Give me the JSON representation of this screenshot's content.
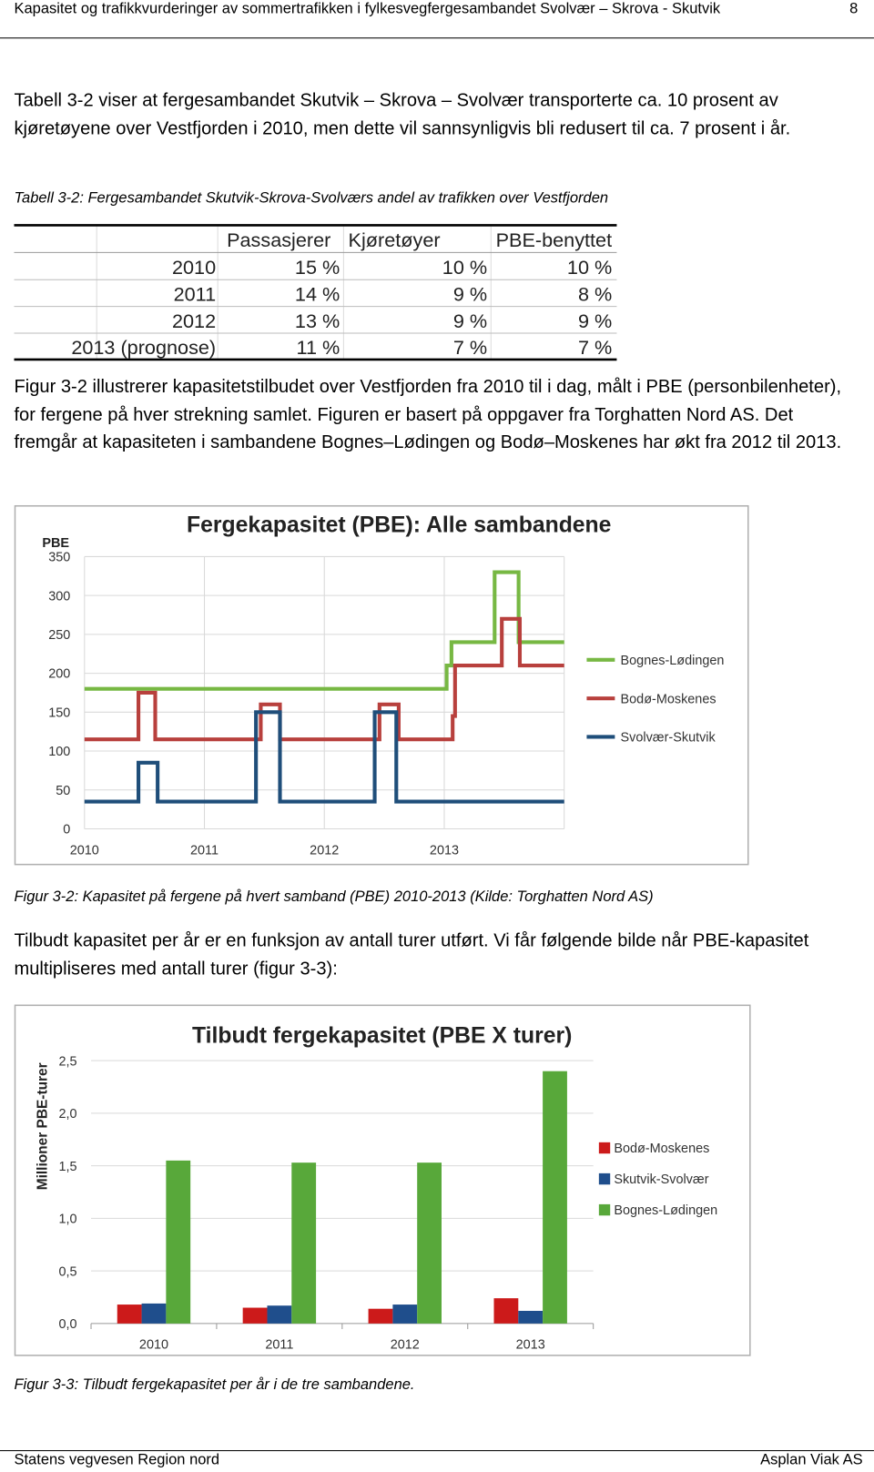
{
  "header": {
    "title": "Kapasitet og trafikkvurderinger av sommertrafikken i fylkesvegfergesambandet Svolvær – Skrova - Skutvik",
    "page_number": "8"
  },
  "paragraphs": [
    "Tabell 3-2 viser at fergesambandet Skutvik – Skrova – Svolvær transporterte ca. 10 prosent av kjøretøyene over Vestfjorden i 2010, men dette vil sannsynligvis bli redusert til ca. 7 prosent i år.",
    "Figur 3-2 illustrerer kapasitetstilbudet over Vestfjorden fra 2010 til i dag, målt i PBE (personbilenheter), for fergene på hver strekning samlet. Figuren er basert på oppgaver fra Torghatten Nord AS. Det fremgår at kapasiteten i sambandene Bognes–Lødingen og Bodø–Moskenes har økt fra 2012 til 2013.",
    "Tilbudt kapasitet per år er en funksjon av antall turer utført. Vi får følgende bilde når PBE-kapasitet multipliseres med antall turer (figur 3-3):"
  ],
  "table": {
    "caption": "Tabell 3-2: Fergesambandet Skutvik-Skrova-Svolværs andel av trafikken over Vestfjorden",
    "columns": [
      "Passasjerer",
      "Kjøretøyer",
      "PBE-benyttet"
    ],
    "rows": [
      [
        "2010",
        "15 %",
        "10 %",
        "10 %"
      ],
      [
        "2011",
        "14 %",
        "9 %",
        "8 %"
      ],
      [
        "2012",
        "13 %",
        "9 %",
        "9 %"
      ],
      [
        "2013 (prognose)",
        "11 %",
        "7 %",
        "7 %"
      ]
    ]
  },
  "chart_data": [
    {
      "type": "line",
      "step": "post",
      "title": "Fergekapasitet (PBE): Alle sambandene",
      "ylabel": "PBE",
      "xlim": [
        2010,
        2014
      ],
      "xticks": [
        2010,
        2011,
        2012,
        2013
      ],
      "ylim": [
        0,
        350
      ],
      "yticks": [
        0,
        50,
        100,
        150,
        200,
        250,
        300,
        350
      ],
      "grid": true,
      "legend": "right",
      "series": [
        {
          "name": "Bognes-Lødingen",
          "color": "#77b843",
          "x": [
            2010,
            2013.02,
            2013.06,
            2013.42,
            2013.62,
            2014
          ],
          "values": [
            180,
            210,
            240,
            330,
            240,
            240
          ]
        },
        {
          "name": "Bodø-Moskenes",
          "color": "#b8403d",
          "x": [
            2010,
            2010.45,
            2010.59,
            2011.47,
            2011.63,
            2012.46,
            2012.62,
            2013.07,
            2013.09,
            2013.48,
            2013.63,
            2014
          ],
          "values": [
            115,
            175,
            115,
            160,
            115,
            160,
            115,
            145,
            210,
            270,
            210,
            210
          ]
        },
        {
          "name": "Svolvær-Skutvik",
          "color": "#1f4e7a",
          "x": [
            2010,
            2010.45,
            2010.61,
            2011.43,
            2011.63,
            2012.42,
            2012.6,
            2014
          ],
          "values": [
            35,
            85,
            35,
            150,
            35,
            150,
            35,
            35
          ]
        }
      ]
    },
    {
      "type": "bar",
      "title": "Tilbudt fergekapasitet (PBE X turer)",
      "ylabel": "Millioner PBE-turer",
      "categories": [
        "2010",
        "2011",
        "2012",
        "2013"
      ],
      "ylim": [
        0,
        2.5
      ],
      "yticks": [
        {
          "value": 0,
          "label": "0,0"
        },
        {
          "value": 0.5,
          "label": "0,5"
        },
        {
          "value": 1,
          "label": "1,0"
        },
        {
          "value": 1.5,
          "label": "1,5"
        },
        {
          "value": 2,
          "label": "2,0"
        },
        {
          "value": 2.5,
          "label": "2,5"
        }
      ],
      "grid": true,
      "legend": "right",
      "series": [
        {
          "name": "Bodø-Moskenes",
          "color": "#cc1a1a",
          "values": [
            0.18,
            0.15,
            0.14,
            0.24
          ]
        },
        {
          "name": "Skutvik-Svolvær",
          "color": "#1f4e8c",
          "values": [
            0.19,
            0.17,
            0.18,
            0.12
          ]
        },
        {
          "name": "Bognes-Lødingen",
          "color": "#58a83a",
          "values": [
            1.55,
            1.53,
            1.53,
            2.4
          ]
        }
      ]
    }
  ],
  "captions": [
    "Figur 3-2: Kapasitet på fergene på hvert samband (PBE) 2010-2013 (Kilde: Torghatten Nord AS)",
    "Figur 3-3: Tilbudt fergekapasitet per år i de tre sambandene."
  ],
  "footer": {
    "left": "Statens vegvesen Region nord",
    "right": "Asplan Viak AS"
  }
}
